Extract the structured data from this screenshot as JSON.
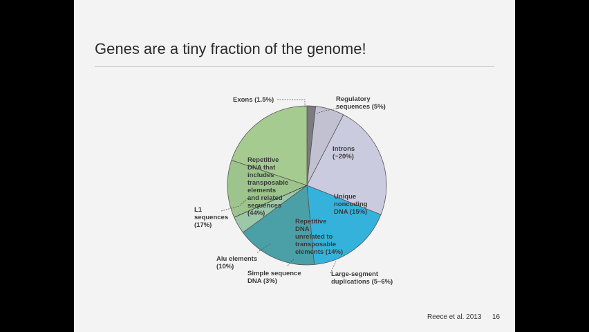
{
  "slide": {
    "title": "Genes are a tiny fraction of the genome!",
    "credit": "Reece et al. 2013",
    "page_number": "16"
  },
  "chart_data": {
    "type": "pie",
    "title": "",
    "slices": [
      {
        "name": "exons",
        "lines": [
          "Exons (1.5%)"
        ],
        "value": 1.5,
        "color": "#7b7b80"
      },
      {
        "name": "regulatory-sequences",
        "lines": [
          "Regulatory",
          "sequences (5%)"
        ],
        "value": 5,
        "color": "#c1c1d1"
      },
      {
        "name": "introns",
        "lines": [
          "Introns",
          "(~20%)"
        ],
        "value": 20,
        "color": "#cbcbe0"
      },
      {
        "name": "unique-noncoding-dna",
        "lines": [
          "Unique",
          "noncoding",
          "DNA (15%)"
        ],
        "value": 15,
        "color": "#34b2dc"
      },
      {
        "name": "repetitive-dna-unrelated",
        "lines": [
          "Repetitive",
          "DNA",
          "unrelated to",
          "transposable",
          "elements (14%)"
        ],
        "value": 14,
        "color": "#4aa0a6"
      },
      {
        "name": "simple-sequence-dna",
        "lines": [
          "Simple sequence",
          "DNA (3%)"
        ],
        "value": 3,
        "color": "#9cc7a8"
      },
      {
        "name": "alu-elements",
        "lines": [
          "Alu elements",
          "(10%)"
        ],
        "value": 10,
        "color": "#9cc48c"
      },
      {
        "name": "l1-sequences",
        "lines": [
          "L1",
          "sequences",
          "(17%)"
        ],
        "value": 17,
        "color": "#a6cb91"
      }
    ],
    "group_label": {
      "lines": [
        "Repetitive",
        "DNA that",
        "includes",
        "transposable",
        "elements",
        "and related",
        "sequences",
        "(44%)"
      ],
      "value": 44
    },
    "extra_label": {
      "lines": [
        "Large-segment",
        "duplications (5–6%)"
      ],
      "value": 5.5
    }
  }
}
